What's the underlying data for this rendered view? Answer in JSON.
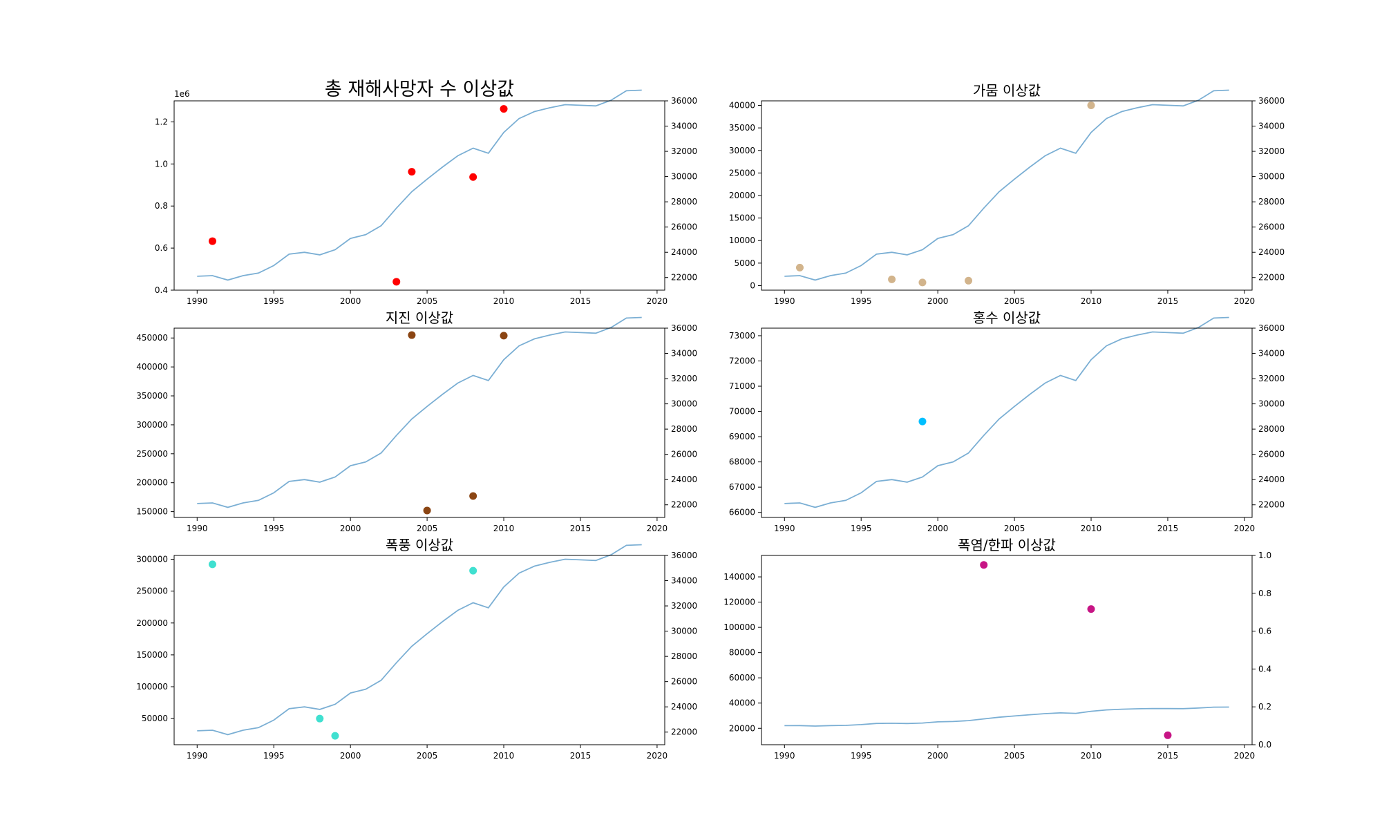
{
  "chart_data": [
    {
      "type": "scatter",
      "title": "총 재해사망자 수 이상값",
      "title_size": "large",
      "offset_label": "1e6",
      "xlim": [
        1988.5,
        2020.5
      ],
      "x_ticks": [
        1990,
        1995,
        2000,
        2005,
        2010,
        2015,
        2020
      ],
      "ylim": [
        0.4,
        1.3
      ],
      "y_ticks": [
        0.4,
        0.6,
        0.8,
        1.0,
        1.2
      ],
      "y_tick_labels": [
        "0.4",
        "0.6",
        "0.8",
        "1.0",
        "1.2"
      ],
      "y2lim": [
        21000,
        36000
      ],
      "y2_ticks": [
        22000,
        24000,
        26000,
        28000,
        30000,
        32000,
        34000,
        36000
      ],
      "color": "#ff0000",
      "points": [
        {
          "x": 1991,
          "y": 0.633
        },
        {
          "x": 2003,
          "y": 0.44
        },
        {
          "x": 2004,
          "y": 0.963
        },
        {
          "x": 2008,
          "y": 0.938
        },
        {
          "x": 2010,
          "y": 1.262
        }
      ]
    },
    {
      "type": "scatter",
      "title": "가뭄 이상값",
      "xlim": [
        1988.5,
        2020.5
      ],
      "x_ticks": [
        1990,
        1995,
        2000,
        2005,
        2010,
        2015,
        2020
      ],
      "ylim": [
        -1000,
        41000
      ],
      "y_ticks": [
        0,
        5000,
        10000,
        15000,
        20000,
        25000,
        30000,
        35000,
        40000
      ],
      "y_tick_labels": [
        "0",
        "5000",
        "10000",
        "15000",
        "20000",
        "25000",
        "30000",
        "35000",
        "40000"
      ],
      "y2lim": [
        21000,
        36000
      ],
      "y2_ticks": [
        22000,
        24000,
        26000,
        28000,
        30000,
        32000,
        34000,
        36000
      ],
      "color": "#d2b48c",
      "points": [
        {
          "x": 1991,
          "y": 4000
        },
        {
          "x": 1997,
          "y": 1400
        },
        {
          "x": 1999,
          "y": 700
        },
        {
          "x": 2002,
          "y": 1100
        },
        {
          "x": 2010,
          "y": 40000
        }
      ]
    },
    {
      "type": "scatter",
      "title": "지진 이상값",
      "xlim": [
        1988.5,
        2020.5
      ],
      "x_ticks": [
        1990,
        1995,
        2000,
        2005,
        2010,
        2015,
        2020
      ],
      "ylim": [
        140000,
        467000
      ],
      "y_ticks": [
        150000,
        200000,
        250000,
        300000,
        350000,
        400000,
        450000
      ],
      "y_tick_labels": [
        "150000",
        "200000",
        "250000",
        "300000",
        "350000",
        "400000",
        "450000"
      ],
      "y2lim": [
        21000,
        36000
      ],
      "y2_ticks": [
        22000,
        24000,
        26000,
        28000,
        30000,
        32000,
        34000,
        36000
      ],
      "color": "#8b4513",
      "points": [
        {
          "x": 2004,
          "y": 455000
        },
        {
          "x": 2005,
          "y": 152000
        },
        {
          "x": 2008,
          "y": 177000
        },
        {
          "x": 2010,
          "y": 454000
        }
      ]
    },
    {
      "type": "scatter",
      "title": "홍수 이상값",
      "xlim": [
        1988.5,
        2020.5
      ],
      "x_ticks": [
        1990,
        1995,
        2000,
        2005,
        2010,
        2015,
        2020
      ],
      "ylim": [
        65800,
        73300
      ],
      "y_ticks": [
        66000,
        67000,
        68000,
        69000,
        70000,
        71000,
        72000,
        73000
      ],
      "y_tick_labels": [
        "66000",
        "67000",
        "68000",
        "69000",
        "70000",
        "71000",
        "72000",
        "73000"
      ],
      "y2lim": [
        21000,
        36000
      ],
      "y2_ticks": [
        22000,
        24000,
        26000,
        28000,
        30000,
        32000,
        34000,
        36000
      ],
      "color": "#00bfff",
      "points": [
        {
          "x": 1999,
          "y": 69600
        }
      ]
    },
    {
      "type": "scatter",
      "title": "폭풍 이상값",
      "xlim": [
        1988.5,
        2020.5
      ],
      "x_ticks": [
        1990,
        1995,
        2000,
        2005,
        2010,
        2015,
        2020
      ],
      "ylim": [
        9000,
        306000
      ],
      "y_ticks": [
        50000,
        100000,
        150000,
        200000,
        250000,
        300000
      ],
      "y_tick_labels": [
        "50000",
        "100000",
        "150000",
        "200000",
        "250000",
        "300000"
      ],
      "y2lim": [
        21000,
        36000
      ],
      "y2_ticks": [
        22000,
        24000,
        26000,
        28000,
        30000,
        32000,
        34000,
        36000
      ],
      "color": "#40e0d0",
      "points": [
        {
          "x": 1991,
          "y": 292000
        },
        {
          "x": 1998,
          "y": 50000
        },
        {
          "x": 1999,
          "y": 23000
        },
        {
          "x": 2008,
          "y": 282000
        }
      ]
    },
    {
      "type": "scatter",
      "title": "폭염/한파 이상값",
      "xlim": [
        1988.5,
        2020.5
      ],
      "x_ticks": [
        1990,
        1995,
        2000,
        2005,
        2010,
        2015,
        2020
      ],
      "ylim": [
        7000,
        157000
      ],
      "y_ticks": [
        20000,
        40000,
        60000,
        80000,
        100000,
        120000,
        140000
      ],
      "y_tick_labels": [
        "20000",
        "40000",
        "60000",
        "80000",
        "100000",
        "120000",
        "140000"
      ],
      "y2lim": [
        0,
        1
      ],
      "y2_ticks": [
        0,
        0.2,
        0.4,
        0.6,
        0.8,
        1.0
      ],
      "y2_tick_labels": [
        "0.0",
        "0.2",
        "0.4",
        "0.6",
        "0.8",
        "1.0"
      ],
      "color": "#c71585",
      "line_on_primary": true,
      "points": [
        {
          "x": 2003,
          "y": 149500
        },
        {
          "x": 2010,
          "y": 114500
        },
        {
          "x": 2015,
          "y": 14500
        }
      ]
    }
  ],
  "line_series": {
    "color": "#7bafd4",
    "x": [
      1990,
      1991,
      1992,
      1993,
      1994,
      1995,
      1996,
      1997,
      1998,
      1999,
      2000,
      2001,
      2002,
      2003,
      2004,
      2005,
      2006,
      2007,
      2008,
      2009,
      2010,
      2011,
      2012,
      2013,
      2014,
      2015,
      2016,
      2017,
      2018,
      2019
    ],
    "y": [
      22100,
      22150,
      21800,
      22150,
      22350,
      22950,
      23850,
      24000,
      23800,
      24200,
      25100,
      25400,
      26100,
      27500,
      28800,
      29800,
      30750,
      31650,
      32250,
      31850,
      33500,
      34600,
      35150,
      35450,
      35700,
      35650,
      35600,
      36050,
      36800,
      36850
    ]
  },
  "line_series_primary_on_last": {
    "y": [
      22100,
      22150,
      21800,
      22150,
      22350,
      22950,
      23850,
      24000,
      23800,
      24200,
      25100,
      25400,
      26100,
      27500,
      28800,
      29800,
      30750,
      31650,
      32250,
      31850,
      33500,
      34600,
      35150,
      35450,
      35700,
      35650,
      35600,
      36050,
      36800,
      36850
    ]
  }
}
